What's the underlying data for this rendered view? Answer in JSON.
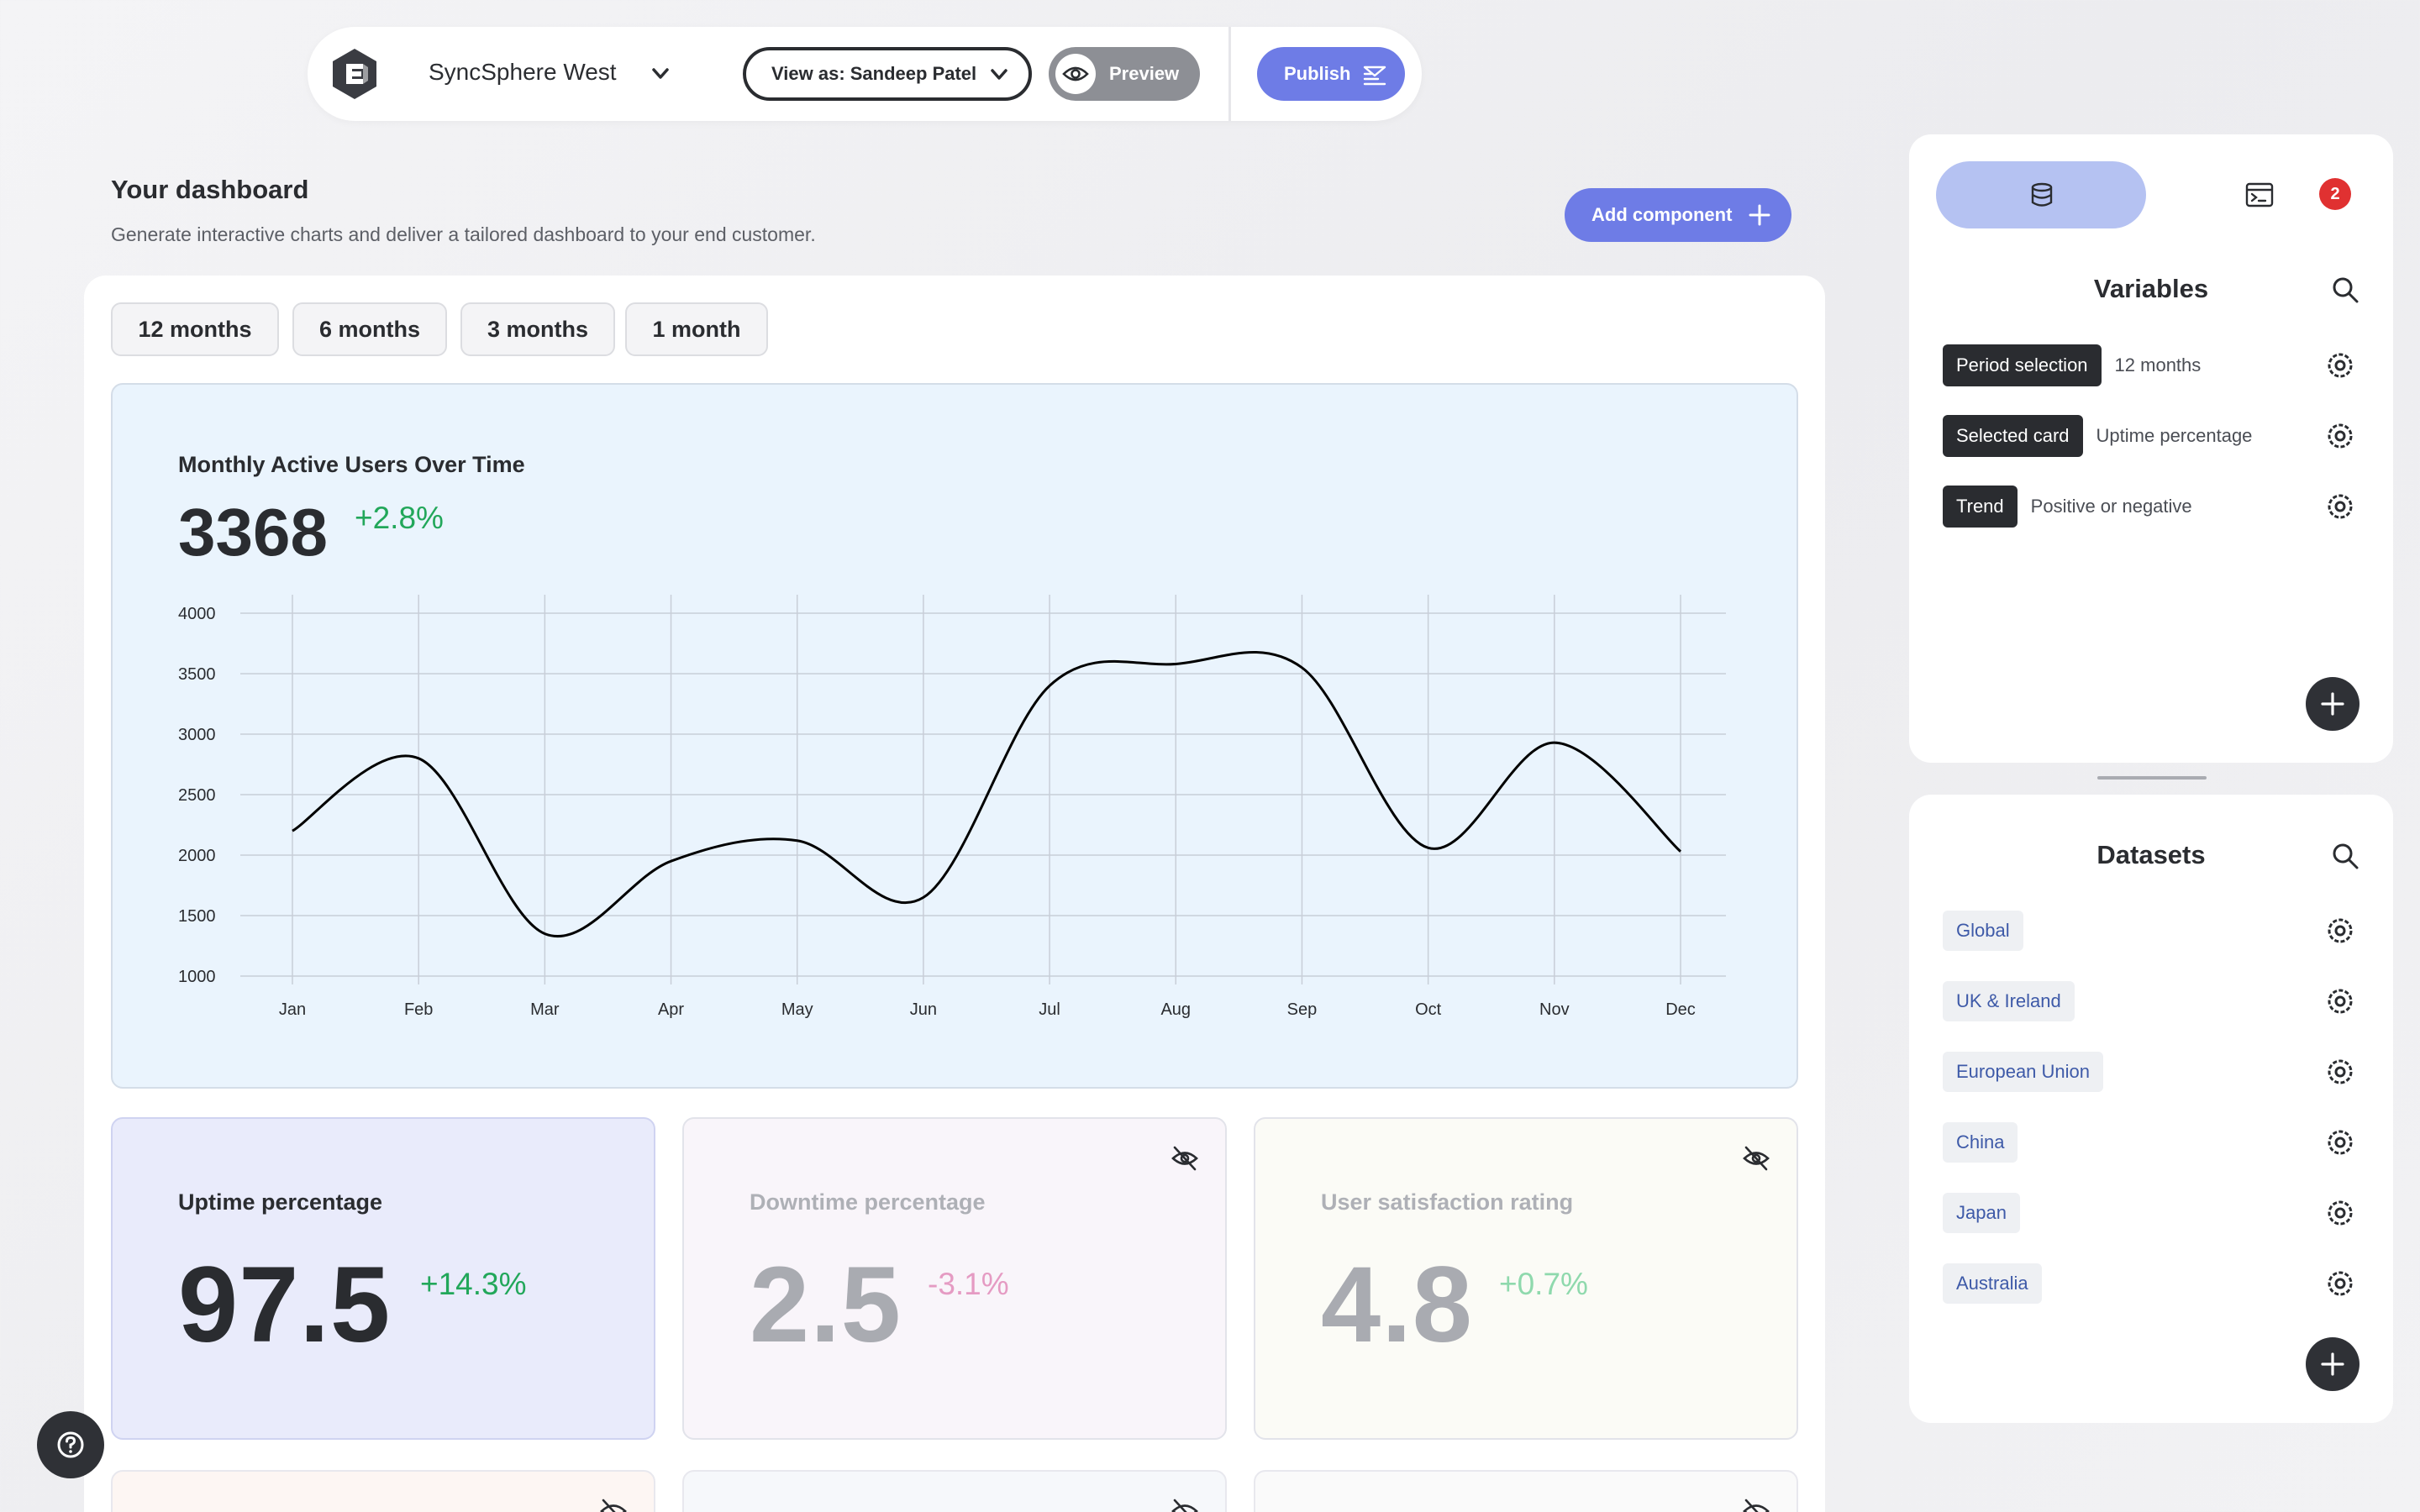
{
  "toolbar": {
    "workspace": "SyncSphere West",
    "view_as": "View as: Sandeep Patel",
    "preview_label": "Preview",
    "publish_label": "Publish"
  },
  "dashboard": {
    "title": "Your dashboard",
    "subtitle": "Generate interactive charts and deliver a tailored dashboard to your end customer.",
    "add_component_label": "Add component",
    "periods": [
      "12 months",
      "6 months",
      "3 months",
      "1 month"
    ]
  },
  "chart_card": {
    "title": "Monthly Active Users Over Time",
    "value": "3368",
    "delta": "+2.8%"
  },
  "chart_data": {
    "type": "line",
    "categories": [
      "Jan",
      "Feb",
      "Mar",
      "Apr",
      "May",
      "Jun",
      "Jul",
      "Aug",
      "Sep",
      "Oct",
      "Nov",
      "Dec"
    ],
    "series": [
      {
        "values": [
          2200,
          2800,
          1350,
          1950,
          2120,
          1650,
          3400,
          3580,
          3550,
          2060,
          2930,
          2030
        ]
      }
    ],
    "ylim": [
      1000,
      4000
    ],
    "yticks": [
      1000,
      1500,
      2000,
      2500,
      3000,
      3500,
      4000
    ],
    "xlabel": "",
    "ylabel": "",
    "grid": true,
    "line_color": "#000000"
  },
  "metrics": [
    {
      "title": "Uptime percentage",
      "value": "97.5",
      "delta": "+14.3%"
    },
    {
      "title": "Downtime percentage",
      "value": "2.5",
      "delta": "-3.1%"
    },
    {
      "title": "User satisfaction rating",
      "value": "4.8",
      "delta": "+0.7%"
    }
  ],
  "variables_panel": {
    "badge_count": "2",
    "title": "Variables",
    "items": [
      {
        "tag": "Period selection",
        "value": "12 months"
      },
      {
        "tag": "Selected card",
        "value": "Uptime percentage"
      },
      {
        "tag": "Trend",
        "value": "Positive or negative"
      }
    ]
  },
  "datasets_panel": {
    "title": "Datasets",
    "items": [
      "Global",
      "UK & Ireland",
      "European Union",
      "China",
      "Japan",
      "Australia"
    ]
  },
  "colors": {
    "accent": "#6e7ce6",
    "positive": "#22a75a",
    "negative": "#e59bc3",
    "dark": "#2a2c30"
  }
}
